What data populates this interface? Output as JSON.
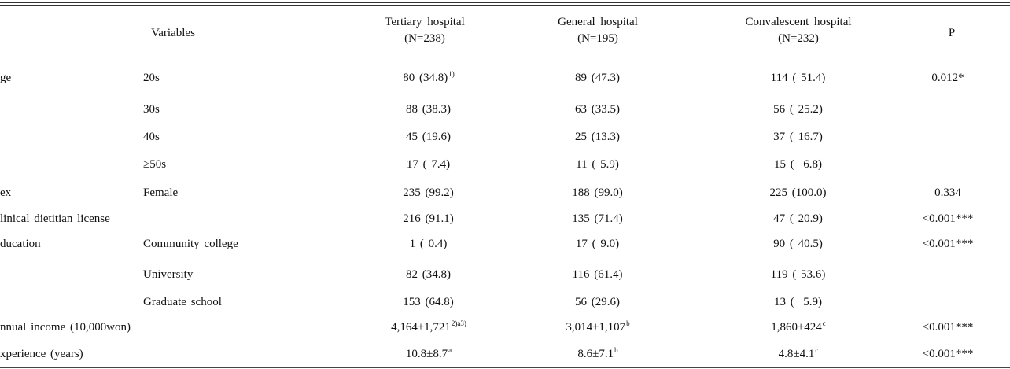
{
  "headers": {
    "variables": "Variables",
    "tertiary": {
      "name": "Tertiary hospital",
      "n": "(N=238)"
    },
    "general": {
      "name": "General hospital",
      "n": "(N=195)"
    },
    "convalescent": {
      "name": "Convalescent hospital",
      "n": "(N=232)"
    },
    "p": "P"
  },
  "rows": [
    {
      "variable": "ge",
      "category": "20s",
      "tertiary": "80 (34.8)",
      "tertiary_sup": "1)",
      "general": "89 (47.3)",
      "general_sup": "",
      "convalescent": "114 ( 51.4)",
      "convalescent_sup": "",
      "p": "0.012*"
    },
    {
      "variable": "",
      "category": "30s",
      "tertiary": "88 (38.3)",
      "tertiary_sup": "",
      "general": "63 (33.5)",
      "general_sup": "",
      "convalescent": "56 ( 25.2)",
      "convalescent_sup": "",
      "p": ""
    },
    {
      "variable": "",
      "category": "40s",
      "tertiary": "45 (19.6)",
      "tertiary_sup": "",
      "general": "25 (13.3)",
      "general_sup": "",
      "convalescent": "37 ( 16.7)",
      "convalescent_sup": "",
      "p": ""
    },
    {
      "variable": "",
      "category": "≥50s",
      "tertiary": "17 ( 7.4)",
      "tertiary_sup": "",
      "general": "11 ( 5.9)",
      "general_sup": "",
      "convalescent": "15 (  6.8)",
      "convalescent_sup": "",
      "p": ""
    },
    {
      "variable": "ex",
      "category": "Female",
      "tertiary": "235 (99.2)",
      "tertiary_sup": "",
      "general": "188 (99.0)",
      "general_sup": "",
      "convalescent": "225 (100.0)",
      "convalescent_sup": "",
      "p": "0.334"
    },
    {
      "variable": "linical dietitian license",
      "category": "",
      "tertiary": "216 (91.1)",
      "tertiary_sup": "",
      "general": "135 (71.4)",
      "general_sup": "",
      "convalescent": "47 ( 20.9)",
      "convalescent_sup": "",
      "p": "<0.001***"
    },
    {
      "variable": "ducation",
      "category": "Community college",
      "tertiary": "1 ( 0.4)",
      "tertiary_sup": "",
      "general": "17 ( 9.0)",
      "general_sup": "",
      "convalescent": "90 ( 40.5)",
      "convalescent_sup": "",
      "p": "<0.001***"
    },
    {
      "variable": "",
      "category": "University",
      "tertiary": "82 (34.8)",
      "tertiary_sup": "",
      "general": "116 (61.4)",
      "general_sup": "",
      "convalescent": "119 ( 53.6)",
      "convalescent_sup": "",
      "p": ""
    },
    {
      "variable": "",
      "category": "Graduate school",
      "tertiary": "153 (64.8)",
      "tertiary_sup": "",
      "general": "56 (29.6)",
      "general_sup": "",
      "convalescent": "13 (  5.9)",
      "convalescent_sup": "",
      "p": ""
    },
    {
      "variable": "nnual income (10,000won)",
      "category": "",
      "tertiary": "4,164±1,721",
      "tertiary_sup": "2)a3)",
      "general": "3,014±1,107",
      "general_sup": "b",
      "convalescent": "1,860±424",
      "convalescent_sup": "c",
      "p": "<0.001***"
    },
    {
      "variable": "xperience (years)",
      "category": "",
      "tertiary": "10.8±8.7",
      "tertiary_sup": "a",
      "general": "8.6±7.1",
      "general_sup": "b",
      "convalescent": "4.8±4.1",
      "convalescent_sup": "c",
      "p": "<0.001***"
    }
  ]
}
